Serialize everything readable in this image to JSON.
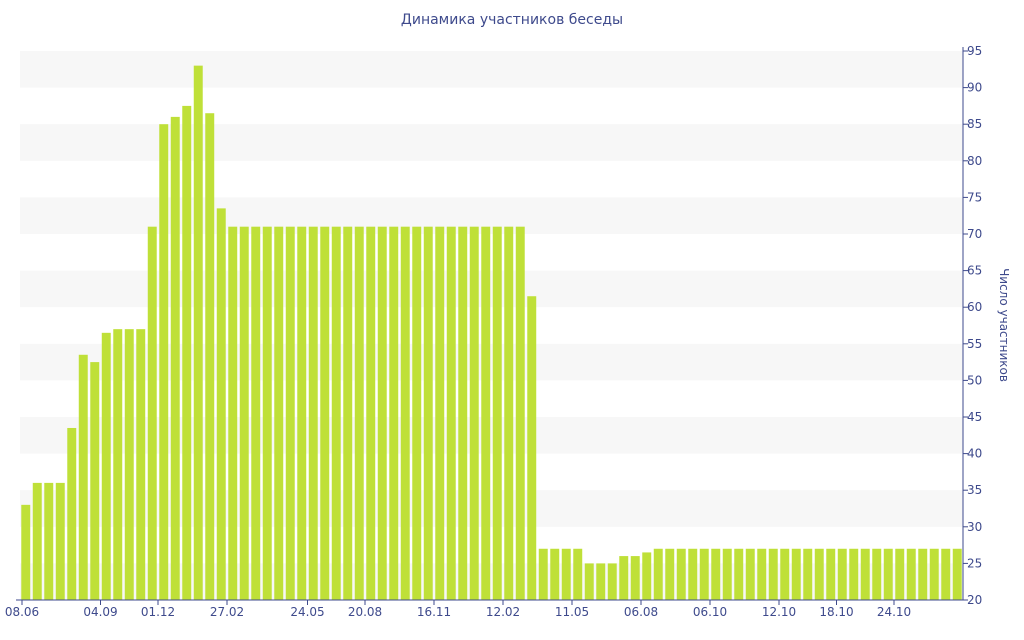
{
  "chart_data": {
    "type": "bar",
    "title": "Динамика участников беседы",
    "ylabel": "Число участников",
    "xlabel": "",
    "ylim": [
      20,
      95
    ],
    "yticks": [
      20,
      25,
      30,
      35,
      40,
      45,
      50,
      55,
      60,
      65,
      70,
      75,
      80,
      85,
      90,
      95
    ],
    "y_axis_side": "right",
    "grid": "alternating horizontal bands",
    "bar_color": "#bfe038",
    "band_color": "#f7f7f7",
    "axis_color": "#3e4a8c",
    "xtick_labels": [
      {
        "index": 0,
        "label": "08.06"
      },
      {
        "index": 7,
        "label": "04.09"
      },
      {
        "index": 12,
        "label": "01.12"
      },
      {
        "index": 18,
        "label": "27.02"
      },
      {
        "index": 25,
        "label": "24.05"
      },
      {
        "index": 30,
        "label": "20.08"
      },
      {
        "index": 36,
        "label": "16.11"
      },
      {
        "index": 42,
        "label": "12.02"
      },
      {
        "index": 48,
        "label": "11.05"
      },
      {
        "index": 54,
        "label": "06.08"
      },
      {
        "index": 60,
        "label": "06.10"
      },
      {
        "index": 66,
        "label": "12.10"
      },
      {
        "index": 71,
        "label": "18.10"
      },
      {
        "index": 76,
        "label": "24.10"
      }
    ],
    "values": [
      33,
      36,
      36,
      36,
      43.5,
      53.5,
      52.5,
      56.5,
      57,
      57,
      57,
      71,
      85,
      86,
      87.5,
      93,
      86.5,
      73.5,
      71,
      71,
      71,
      71,
      71,
      71,
      71,
      71,
      71,
      71,
      71,
      71,
      71,
      71,
      71,
      71,
      71,
      71,
      71,
      71,
      71,
      71,
      71,
      71,
      71,
      71,
      61.5,
      27,
      27,
      27,
      27,
      25,
      25,
      25,
      26,
      26,
      26.5,
      27,
      27,
      27,
      27,
      27,
      27,
      27,
      27,
      27,
      27,
      27,
      27,
      27,
      27,
      27,
      27,
      27,
      27,
      27,
      27,
      27,
      27,
      27,
      27,
      27,
      27,
      27
    ]
  }
}
